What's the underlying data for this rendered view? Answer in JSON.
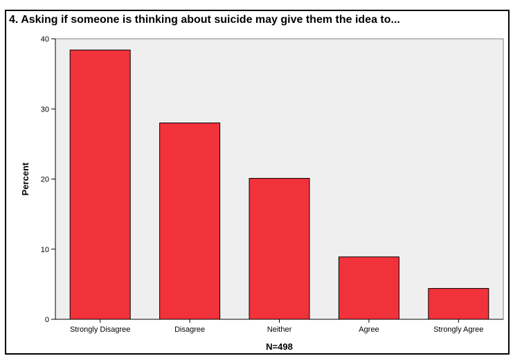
{
  "chart_title": "4. Asking if someone is thinking about suicide may give them the idea to...",
  "colors": {
    "bar_fill": "#f1323a",
    "bar_stroke": "#000000",
    "plot_bg": "#efefef",
    "frame": "#000000"
  },
  "chart_data": {
    "type": "bar",
    "title": "4. Asking if someone is thinking about suicide may give them the idea to...",
    "categories": [
      "Strongly Disagree",
      "Disagree",
      "Neither",
      "Agree",
      "Strongly Agree"
    ],
    "values": [
      38.4,
      28.0,
      20.1,
      8.9,
      4.4
    ],
    "xlabel": "N=498",
    "ylabel": "Percent",
    "ylim": [
      0,
      40
    ],
    "yticks": [
      0,
      10,
      20,
      30,
      40
    ],
    "grid": false,
    "legend": "none"
  }
}
